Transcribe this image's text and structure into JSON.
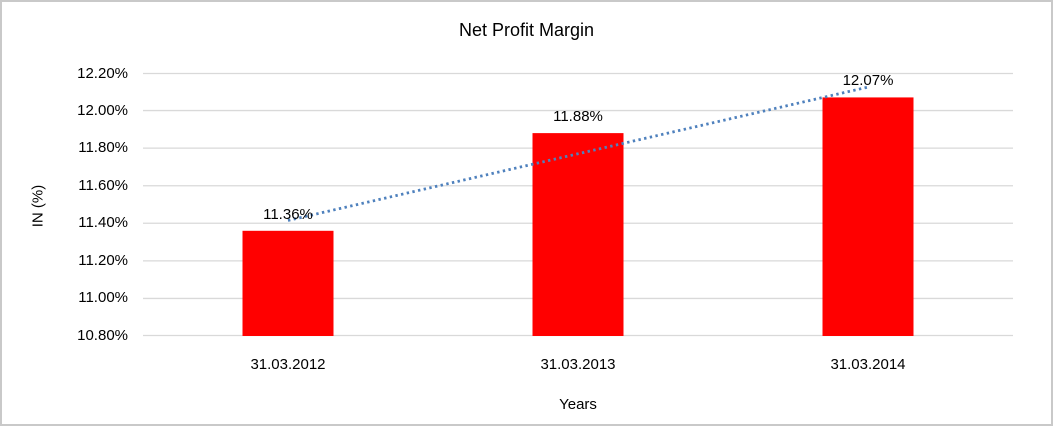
{
  "chart_data": {
    "type": "bar",
    "title": "Net Profit Margin",
    "xlabel": "Years",
    "ylabel": "IN (%)",
    "categories": [
      "31.03.2012",
      "31.03.2013",
      "31.03.2014"
    ],
    "values": [
      11.36,
      11.88,
      12.07
    ],
    "data_labels": [
      "11.36%",
      "11.88%",
      "12.07%"
    ],
    "y_ticks": [
      "10.80%",
      "11.00%",
      "11.20%",
      "11.40%",
      "11.60%",
      "11.80%",
      "12.00%",
      "12.20%"
    ],
    "ylim": [
      10.8,
      12.2
    ],
    "grid": "horizontal-only",
    "legend": "none",
    "colors": {
      "bar": "#ff0000",
      "trendline": "#4f81bd",
      "gridline": "#d9d9d9",
      "text": "#000000",
      "frame_border": "#c9c9c9",
      "background": "#ffffff"
    },
    "trendline": {
      "type": "linear",
      "style": "dotted"
    }
  }
}
